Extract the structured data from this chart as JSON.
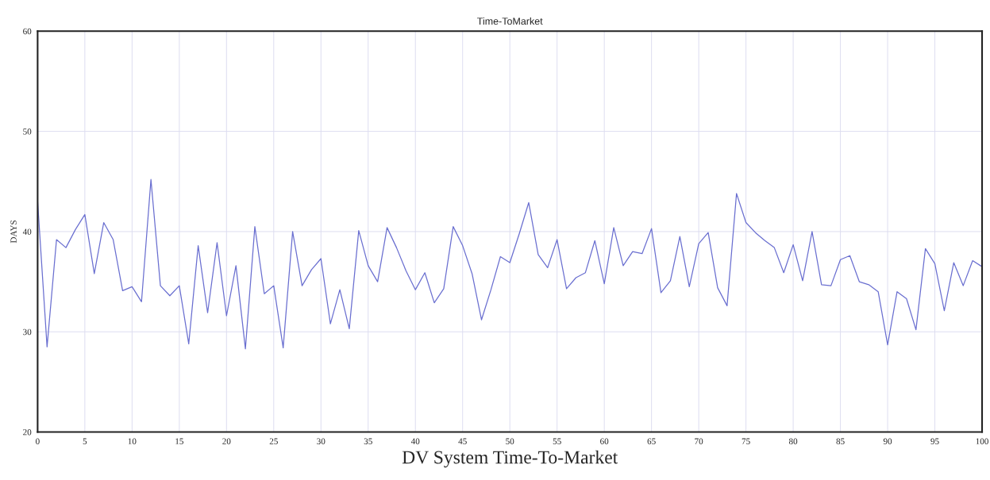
{
  "chart_data": {
    "type": "line",
    "title": "Time-ToMarket",
    "xlabel": "DV System Time-To-Market",
    "ylabel": "DAYS",
    "x": [
      0,
      1,
      2,
      3,
      4,
      5,
      6,
      7,
      8,
      9,
      10,
      11,
      12,
      13,
      14,
      15,
      16,
      17,
      18,
      19,
      20,
      21,
      22,
      23,
      24,
      25,
      26,
      27,
      28,
      29,
      30,
      31,
      32,
      33,
      34,
      35,
      36,
      37,
      38,
      39,
      40,
      41,
      42,
      43,
      44,
      45,
      46,
      47,
      48,
      49,
      50,
      51,
      52,
      53,
      54,
      55,
      56,
      57,
      58,
      59,
      60,
      61,
      62,
      63,
      64,
      65,
      66,
      67,
      68,
      69,
      70,
      71,
      72,
      73,
      74,
      75,
      76,
      77,
      78,
      79,
      80,
      81,
      82,
      83,
      84,
      85,
      86,
      87,
      88,
      89,
      90,
      91,
      92,
      93,
      94,
      95,
      96,
      97,
      98,
      99,
      100
    ],
    "series": [
      {
        "color": "#6a6fd0",
        "values": [
          43.0,
          28.5,
          39.2,
          38.4,
          40.2,
          41.7,
          35.8,
          40.9,
          39.2,
          34.1,
          34.5,
          33.0,
          45.2,
          34.6,
          33.6,
          34.6,
          28.8,
          38.6,
          31.9,
          38.9,
          31.6,
          36.6,
          28.3,
          40.5,
          33.8,
          34.6,
          28.4,
          40.0,
          34.6,
          36.2,
          37.3,
          30.8,
          34.2,
          30.3,
          40.1,
          36.6,
          35.0,
          40.4,
          38.4,
          36.1,
          34.2,
          35.9,
          32.9,
          34.3,
          40.5,
          38.6,
          35.8,
          31.2,
          34.2,
          37.5,
          36.9,
          39.8,
          42.9,
          37.7,
          36.4,
          39.2,
          34.3,
          35.4,
          35.9,
          39.1,
          34.8,
          40.4,
          36.6,
          38.0,
          37.8,
          40.3,
          33.9,
          35.1,
          39.5,
          34.5,
          38.8,
          39.9,
          34.4,
          32.6,
          43.8,
          40.9,
          39.9,
          39.1,
          38.4,
          35.9,
          38.7,
          35.1,
          40.0,
          34.7,
          34.6,
          37.2,
          37.6,
          35.0,
          34.7,
          34.0,
          28.7,
          34.0,
          33.3,
          30.2,
          38.3,
          36.8,
          32.1,
          36.9,
          34.6,
          37.1,
          36.5
        ]
      }
    ],
    "xlim": [
      0,
      100
    ],
    "ylim": [
      20,
      60
    ],
    "xticks": [
      0,
      5,
      10,
      15,
      20,
      25,
      30,
      35,
      40,
      45,
      50,
      55,
      60,
      65,
      70,
      75,
      80,
      85,
      90,
      95,
      100
    ],
    "yticks": [
      20,
      30,
      40,
      50,
      60
    ],
    "grid": true,
    "line_style": "solid",
    "marker": "none"
  }
}
